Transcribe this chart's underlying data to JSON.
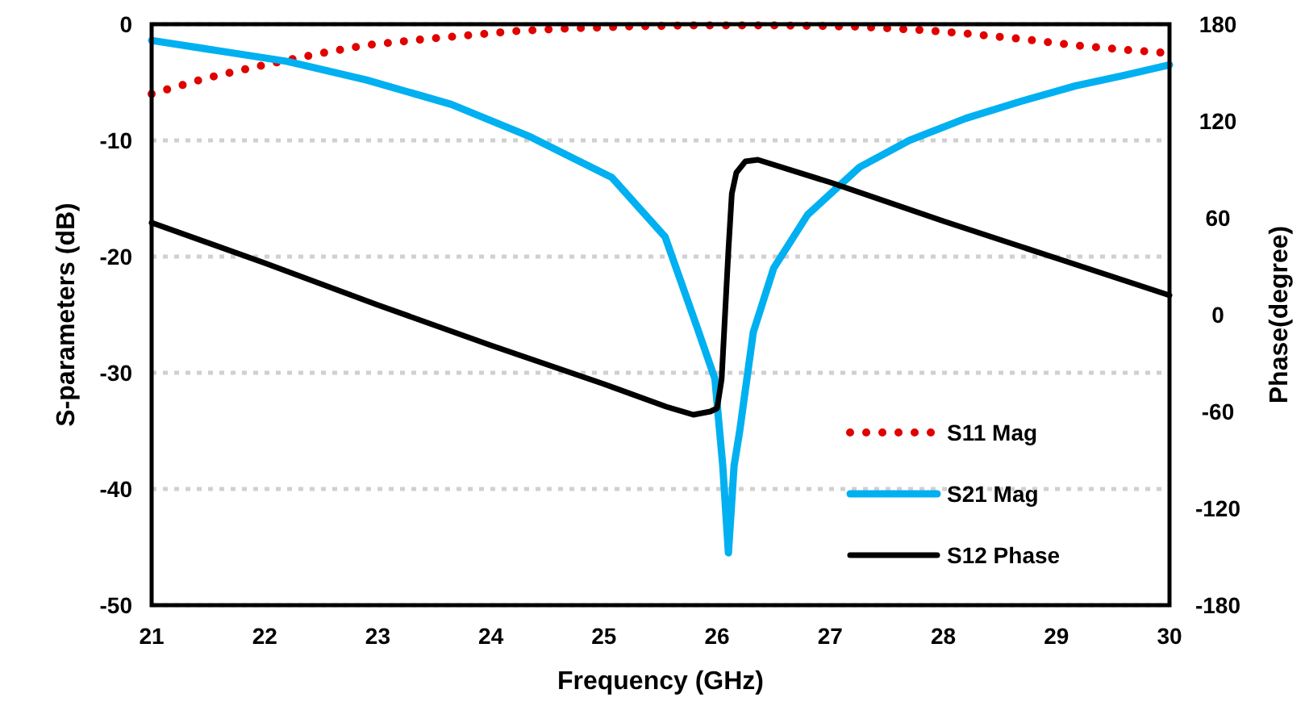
{
  "chart_data": {
    "type": "line",
    "xlabel": "Frequency (GHz)",
    "ylabel": "S-parameters (dB)",
    "y2label": "Phase(degree)",
    "xlim": [
      21,
      30
    ],
    "xticks": [
      21,
      22,
      23,
      24,
      25,
      26,
      27,
      28,
      29,
      30
    ],
    "ylim": [
      -50,
      0
    ],
    "yticks": [
      -50,
      -40,
      -30,
      -20,
      -10,
      0
    ],
    "y2lim": [
      -180,
      180
    ],
    "y2ticks": [
      -180,
      -120,
      -60,
      0,
      60,
      120,
      180
    ],
    "grid": "y",
    "legend": "bottom right",
    "series": [
      {
        "name": "S11 Mag",
        "color": "#e00000",
        "line_style": "dotted",
        "x": [
          21,
          21.5,
          22,
          22.5,
          22.9,
          23.4,
          23.75,
          24.2,
          24.6,
          25.2,
          25.8,
          26.5,
          27.2,
          27.8,
          28.2,
          28.67,
          29.15,
          29.6,
          30
        ],
        "values": [
          -6,
          -4.6,
          -3.5,
          -2.5,
          -1.8,
          -1.3,
          -1,
          -0.6,
          -0.4,
          -0.2,
          -0.1,
          -0.1,
          -0.2,
          -0.5,
          -0.8,
          -1.25,
          -1.8,
          -2.2,
          -2.5
        ]
      },
      {
        "name": "S21 Mag",
        "color": "#00b0f0",
        "line_style": "solid",
        "x": [
          21,
          21.6,
          22.2,
          22.9,
          23.65,
          24.35,
          25.07,
          25.54,
          25.82,
          25.98,
          26.05,
          26.1,
          26.15,
          26.2,
          26.32,
          26.5,
          26.8,
          27.26,
          27.7,
          28.2,
          28.7,
          29.17,
          29.6,
          30
        ],
        "values": [
          -1.4,
          -2.3,
          -3.2,
          -4.8,
          -6.9,
          -9.7,
          -13.2,
          -18.3,
          -26,
          -30.5,
          -38,
          -45.5,
          -38,
          -35,
          -26.5,
          -21,
          -16.4,
          -12.3,
          -10,
          -8.1,
          -6.6,
          -5.3,
          -4.4,
          -3.5
        ]
      },
      {
        "name": "S12 Phase",
        "color": "#000000",
        "line_style": "solid",
        "axis": "y2",
        "x": [
          21,
          22,
          23,
          24,
          25,
          25.55,
          25.79,
          25.94,
          26,
          26.04,
          26.07,
          26.1,
          26.13,
          26.17,
          26.25,
          26.36,
          27,
          28,
          29,
          30
        ],
        "values": [
          57,
          32,
          6,
          -19,
          -43,
          -57,
          -62,
          -60,
          -58,
          -40,
          0,
          40,
          75,
          88,
          95,
          96,
          82,
          58,
          35,
          12
        ]
      }
    ]
  }
}
